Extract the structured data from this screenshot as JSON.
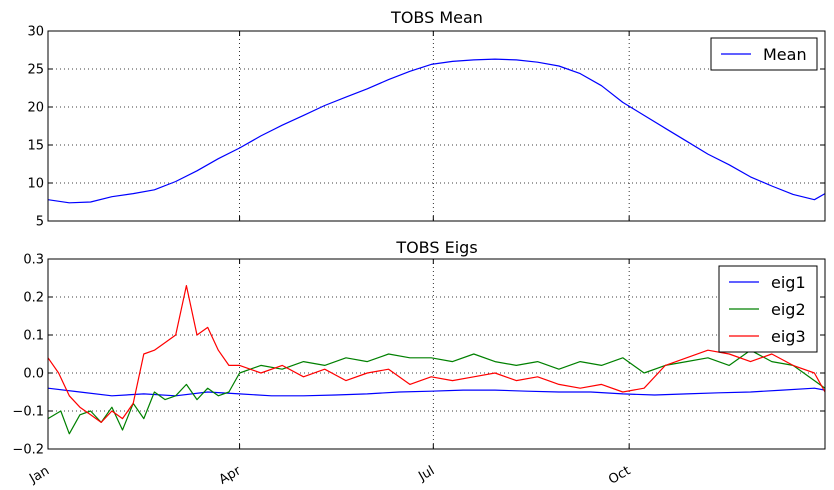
{
  "chart_data": [
    {
      "type": "line",
      "title": "TOBS Mean",
      "xlabel": "",
      "ylabel": "",
      "xlim": [
        0,
        365
      ],
      "ylim": [
        5,
        30
      ],
      "yticks": [
        "5",
        "10",
        "15",
        "20",
        "25",
        "30"
      ],
      "xtick_days": [
        0,
        90,
        181,
        273
      ],
      "xticklabels": [],
      "grid": true,
      "legend_position": "top-right",
      "series": [
        {
          "name": "Mean",
          "color": "#0000ff",
          "x": [
            0,
            10,
            20,
            30,
            40,
            50,
            60,
            70,
            80,
            90,
            100,
            110,
            120,
            130,
            140,
            150,
            160,
            170,
            180,
            190,
            200,
            210,
            220,
            230,
            240,
            250,
            260,
            270,
            280,
            290,
            300,
            310,
            320,
            330,
            340,
            350,
            360,
            365
          ],
          "values": [
            7.8,
            7.4,
            7.5,
            8.2,
            8.6,
            9.1,
            10.2,
            11.6,
            13.2,
            14.6,
            16.2,
            17.6,
            18.9,
            20.2,
            21.3,
            22.4,
            23.6,
            24.7,
            25.6,
            26.0,
            26.2,
            26.3,
            26.2,
            25.9,
            25.4,
            24.4,
            22.8,
            20.6,
            18.9,
            17.2,
            15.5,
            13.8,
            12.4,
            10.8,
            9.6,
            8.5,
            7.8,
            8.6
          ]
        }
      ]
    },
    {
      "type": "line",
      "title": "TOBS Eigs",
      "xlabel": "",
      "ylabel": "",
      "xlim": [
        0,
        365
      ],
      "ylim": [
        -0.2,
        0.3
      ],
      "yticks": [
        "−0.2",
        "−0.1",
        "0.0",
        "0.1",
        "0.2",
        "0.3"
      ],
      "xtick_days": [
        0,
        90,
        181,
        273
      ],
      "xticklabels": [
        "Jan",
        "Apr",
        "Jul",
        "Oct"
      ],
      "grid": true,
      "legend_position": "top-right",
      "series": [
        {
          "name": "eig1",
          "color": "#0000ff",
          "x": [
            0,
            15,
            30,
            45,
            60,
            75,
            90,
            105,
            120,
            135,
            150,
            165,
            180,
            195,
            210,
            225,
            240,
            255,
            270,
            285,
            300,
            315,
            330,
            345,
            360,
            365
          ],
          "values": [
            -0.04,
            -0.05,
            -0.06,
            -0.055,
            -0.06,
            -0.05,
            -0.055,
            -0.06,
            -0.06,
            -0.058,
            -0.055,
            -0.05,
            -0.048,
            -0.045,
            -0.045,
            -0.048,
            -0.05,
            -0.05,
            -0.055,
            -0.058,
            -0.055,
            -0.052,
            -0.05,
            -0.045,
            -0.04,
            -0.045
          ]
        },
        {
          "name": "eig2",
          "color": "#008000",
          "x": [
            0,
            6,
            10,
            15,
            20,
            25,
            30,
            35,
            40,
            45,
            50,
            55,
            60,
            65,
            70,
            75,
            80,
            85,
            90,
            100,
            110,
            120,
            130,
            140,
            150,
            160,
            170,
            180,
            190,
            200,
            210,
            220,
            230,
            240,
            250,
            260,
            270,
            280,
            290,
            300,
            310,
            320,
            330,
            340,
            350,
            360,
            365
          ],
          "values": [
            -0.12,
            -0.1,
            -0.16,
            -0.11,
            -0.1,
            -0.13,
            -0.09,
            -0.15,
            -0.08,
            -0.12,
            -0.05,
            -0.07,
            -0.06,
            -0.03,
            -0.07,
            -0.04,
            -0.06,
            -0.05,
            0.0,
            0.02,
            0.01,
            0.03,
            0.02,
            0.04,
            0.03,
            0.05,
            0.04,
            0.04,
            0.03,
            0.05,
            0.03,
            0.02,
            0.03,
            0.01,
            0.03,
            0.02,
            0.04,
            0.0,
            0.02,
            0.03,
            0.04,
            0.02,
            0.06,
            0.03,
            0.02,
            -0.02,
            -0.04
          ]
        },
        {
          "name": "eig3",
          "color": "#ff0000",
          "x": [
            0,
            5,
            10,
            15,
            20,
            25,
            30,
            35,
            40,
            45,
            50,
            55,
            60,
            65,
            70,
            75,
            80,
            85,
            90,
            100,
            110,
            120,
            130,
            140,
            150,
            160,
            170,
            180,
            190,
            200,
            210,
            220,
            230,
            240,
            250,
            260,
            270,
            280,
            290,
            300,
            310,
            320,
            330,
            340,
            350,
            360,
            365
          ],
          "values": [
            0.04,
            0.0,
            -0.06,
            -0.09,
            -0.11,
            -0.13,
            -0.1,
            -0.12,
            -0.08,
            0.05,
            0.06,
            0.08,
            0.1,
            0.23,
            0.1,
            0.12,
            0.06,
            0.02,
            0.02,
            0.0,
            0.02,
            -0.01,
            0.01,
            -0.02,
            0.0,
            0.01,
            -0.03,
            -0.01,
            -0.02,
            -0.01,
            0.0,
            -0.02,
            -0.01,
            -0.03,
            -0.04,
            -0.03,
            -0.05,
            -0.04,
            0.02,
            0.04,
            0.06,
            0.05,
            0.03,
            0.05,
            0.02,
            0.0,
            -0.05
          ]
        }
      ]
    }
  ]
}
